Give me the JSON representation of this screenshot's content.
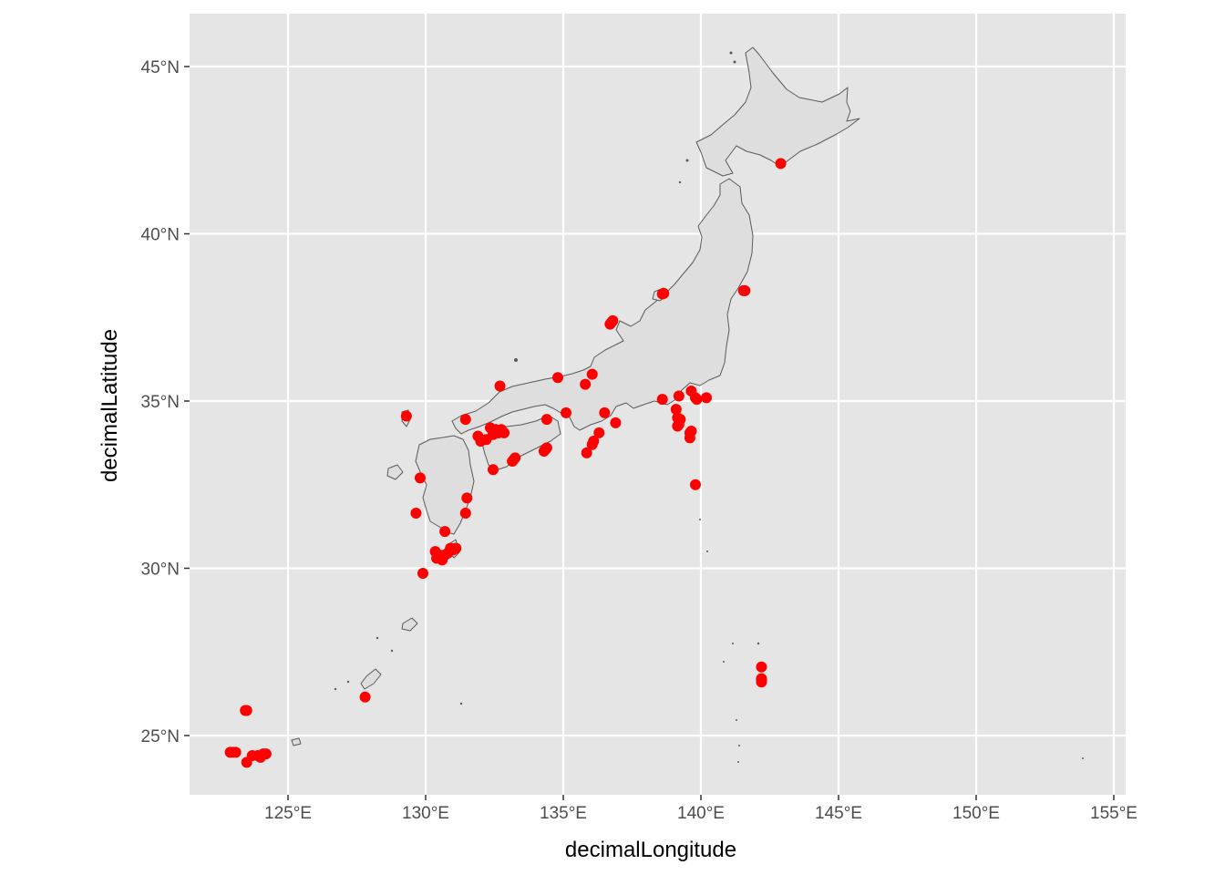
{
  "chart_data": {
    "type": "scatter",
    "title": "",
    "xlabel": "decimalLongitude",
    "ylabel": "decimalLatitude",
    "xlim": [
      121.4,
      155.5
    ],
    "ylim": [
      23.2,
      46.5
    ],
    "x_ticks": [
      {
        "value": 125,
        "label": "125°E"
      },
      {
        "value": 130,
        "label": "130°E"
      },
      {
        "value": 135,
        "label": "135°E"
      },
      {
        "value": 140,
        "label": "140°E"
      },
      {
        "value": 145,
        "label": "145°E"
      },
      {
        "value": 150,
        "label": "150°E"
      },
      {
        "value": 155,
        "label": "155°E"
      }
    ],
    "y_ticks": [
      {
        "value": 25,
        "label": "25°N"
      },
      {
        "value": 30,
        "label": "30°N"
      },
      {
        "value": 35,
        "label": "35°N"
      },
      {
        "value": 40,
        "label": "40°N"
      },
      {
        "value": 45,
        "label": "45°N"
      }
    ],
    "grid": true,
    "panel_color": "#e5e5e5",
    "grid_color": "#ffffff",
    "land_fill": "#dedede",
    "land_stroke": "#5a5a5a",
    "point_color": "#ff0000",
    "points": [
      [
        142.9,
        42.1
      ],
      [
        141.6,
        38.3
      ],
      [
        141.55,
        38.3
      ],
      [
        138.6,
        38.2
      ],
      [
        138.65,
        38.22
      ],
      [
        136.7,
        37.3
      ],
      [
        136.8,
        37.4
      ],
      [
        136.75,
        37.35
      ],
      [
        135.8,
        35.5
      ],
      [
        136.05,
        35.8
      ],
      [
        134.8,
        35.7
      ],
      [
        132.7,
        35.45
      ],
      [
        129.3,
        34.55
      ],
      [
        131.45,
        34.45
      ],
      [
        135.1,
        34.65
      ],
      [
        134.4,
        34.45
      ],
      [
        136.5,
        34.65
      ],
      [
        136.9,
        34.35
      ],
      [
        136.3,
        34.05
      ],
      [
        136.1,
        33.8
      ],
      [
        136.05,
        33.7
      ],
      [
        135.85,
        33.45
      ],
      [
        138.6,
        35.05
      ],
      [
        139.1,
        34.75
      ],
      [
        139.2,
        35.15
      ],
      [
        139.15,
        34.5
      ],
      [
        139.25,
        34.45
      ],
      [
        139.15,
        34.25
      ],
      [
        139.2,
        34.3
      ],
      [
        139.65,
        35.3
      ],
      [
        139.8,
        35.1
      ],
      [
        139.85,
        35.05
      ],
      [
        140.2,
        35.1
      ],
      [
        139.6,
        34.05
      ],
      [
        139.6,
        33.9
      ],
      [
        139.65,
        34.1
      ],
      [
        139.8,
        32.5
      ],
      [
        131.9,
        33.95
      ],
      [
        132.0,
        33.8
      ],
      [
        132.2,
        33.85
      ],
      [
        132.35,
        34.2
      ],
      [
        132.45,
        34.0
      ],
      [
        132.55,
        34.15
      ],
      [
        132.65,
        34.05
      ],
      [
        132.75,
        34.15
      ],
      [
        132.85,
        34.05
      ],
      [
        132.45,
        32.95
      ],
      [
        133.15,
        33.2
      ],
      [
        133.25,
        33.3
      ],
      [
        133.2,
        33.25
      ],
      [
        134.3,
        33.5
      ],
      [
        134.35,
        33.55
      ],
      [
        134.4,
        33.6
      ],
      [
        129.8,
        32.7
      ],
      [
        129.65,
        31.65
      ],
      [
        131.5,
        32.1
      ],
      [
        131.45,
        31.65
      ],
      [
        130.7,
        31.1
      ],
      [
        130.35,
        30.5
      ],
      [
        130.4,
        30.3
      ],
      [
        130.5,
        30.4
      ],
      [
        130.6,
        30.25
      ],
      [
        130.7,
        30.4
      ],
      [
        130.8,
        30.45
      ],
      [
        130.9,
        30.6
      ],
      [
        131.0,
        30.55
      ],
      [
        131.1,
        30.6
      ],
      [
        130.55,
        30.35
      ],
      [
        129.9,
        29.85
      ],
      [
        127.8,
        26.15
      ],
      [
        123.5,
        25.75
      ],
      [
        123.45,
        25.75
      ],
      [
        122.9,
        24.5
      ],
      [
        123.0,
        24.5
      ],
      [
        123.1,
        24.5
      ],
      [
        123.5,
        24.2
      ],
      [
        123.7,
        24.4
      ],
      [
        123.9,
        24.4
      ],
      [
        124.0,
        24.35
      ],
      [
        124.1,
        24.45
      ],
      [
        124.2,
        24.45
      ],
      [
        142.2,
        27.05
      ],
      [
        142.2,
        26.7
      ],
      [
        142.2,
        26.6
      ],
      [
        142.2,
        26.65
      ]
    ]
  }
}
